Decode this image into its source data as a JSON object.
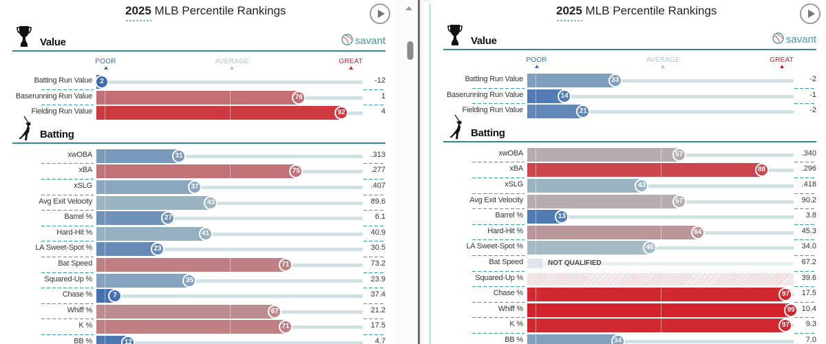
{
  "colors": {
    "teal": "#2e8b92",
    "poor": "#3b6ab0",
    "average": "#a6c8cb",
    "great": "#d41f27"
  },
  "panels": [
    {
      "title_year": "2025",
      "title_rest": " MLB Percentile Rankings",
      "savant_label": "savant",
      "scale": {
        "poor": "POOR",
        "average": "AVERAGE",
        "great": "GREAT"
      },
      "sections": [
        {
          "name": "Value",
          "icon": "trophy-icon",
          "rows": [
            {
              "label": "Batting Run Value",
              "pct": 2,
              "value": "-12"
            },
            {
              "label": "Baserunning Run Value",
              "pct": 76,
              "value": "1"
            },
            {
              "label": "Fielding Run Value",
              "pct": 92,
              "value": "4"
            }
          ]
        },
        {
          "name": "Batting",
          "icon": "batter-icon",
          "rows": [
            {
              "label": "xwOBA",
              "pct": 31,
              "value": ".313"
            },
            {
              "label": "xBA",
              "pct": 75,
              "value": ".277"
            },
            {
              "label": "xSLG",
              "pct": 37,
              "value": ".407"
            },
            {
              "label": "Avg Exit Velocity",
              "pct": 43,
              "value": "89.6"
            },
            {
              "label": "Barrel %",
              "pct": 27,
              "value": "6.1"
            },
            {
              "label": "Hard-Hit %",
              "pct": 41,
              "value": "40.9"
            },
            {
              "label": "LA Sweet-Spot %",
              "pct": 23,
              "value": "30.5"
            },
            {
              "label": "Bat Speed",
              "pct": 71,
              "value": "73.2"
            },
            {
              "label": "Squared-Up %",
              "pct": 35,
              "value": "23.9"
            },
            {
              "label": "Chase %",
              "pct": 7,
              "value": "37.4"
            },
            {
              "label": "Whiff %",
              "pct": 67,
              "value": "21.2"
            },
            {
              "label": "K %",
              "pct": 71,
              "value": "17.5"
            },
            {
              "label": "BB %",
              "pct": 12,
              "value": "4.7"
            }
          ]
        }
      ]
    },
    {
      "title_year": "2025",
      "title_rest": " MLB Percentile Rankings",
      "savant_label": "savant",
      "scale": {
        "poor": "POOR",
        "average": "AVERAGE",
        "great": "GREAT"
      },
      "sections": [
        {
          "name": "Value",
          "icon": "trophy-icon",
          "rows": [
            {
              "label": "Batting Run Value",
              "pct": 33,
              "value": "-2"
            },
            {
              "label": "Baserunning Run Value",
              "pct": 14,
              "value": "-1"
            },
            {
              "label": "Fielding Run Value",
              "pct": 21,
              "value": "-2"
            }
          ]
        },
        {
          "name": "Batting",
          "icon": "batter-icon",
          "rows": [
            {
              "label": "xwOBA",
              "pct": 57,
              "value": ".340"
            },
            {
              "label": "xBA",
              "pct": 88,
              "value": ".296"
            },
            {
              "label": "xSLG",
              "pct": 43,
              "value": ".418"
            },
            {
              "label": "Avg Exit Velocity",
              "pct": 57,
              "value": "90.2"
            },
            {
              "label": "Barrel %",
              "pct": 13,
              "value": "3.8"
            },
            {
              "label": "Hard-Hit %",
              "pct": 64,
              "value": "45.3"
            },
            {
              "label": "LA Sweet-Spot %",
              "pct": 46,
              "value": "34.0"
            },
            {
              "label": "Bat Speed",
              "pct": null,
              "status": "NOT QUALIFIED",
              "value": "67.2"
            },
            {
              "label": "Squared-Up %",
              "pct": null,
              "status": "hatched",
              "value": "39.6"
            },
            {
              "label": "Chase %",
              "pct": 97,
              "value": "17.5"
            },
            {
              "label": "Whiff %",
              "pct": 99,
              "value": "10.4"
            },
            {
              "label": "K %",
              "pct": 97,
              "value": "9.3"
            },
            {
              "label": "BB %",
              "pct": 34,
              "value": "7.0"
            }
          ]
        }
      ]
    }
  ]
}
